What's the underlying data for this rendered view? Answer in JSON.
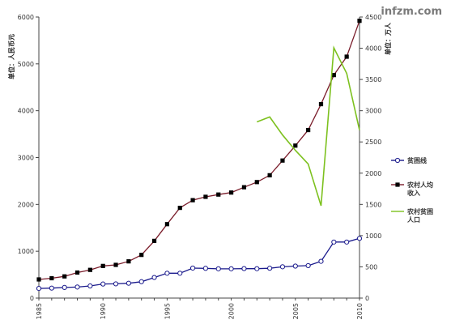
{
  "chart_data": {
    "type": "line",
    "watermark": "infzm.com",
    "left_axis": {
      "title": "单位：人民币元",
      "ylim": [
        0,
        6000
      ],
      "ticks": [
        0,
        1000,
        2000,
        3000,
        4000,
        5000,
        6000
      ]
    },
    "right_axis": {
      "title": "单位：万人",
      "ylim": [
        0,
        4500
      ],
      "ticks": [
        0,
        500,
        1000,
        1500,
        2000,
        2500,
        3000,
        3500,
        4000,
        4500
      ]
    },
    "x_axis": {
      "xlim": [
        1985,
        2010
      ],
      "ticks": [
        1985,
        1990,
        1995,
        2000,
        2005,
        2010
      ]
    },
    "grid": false,
    "legend_position": "right",
    "series": [
      {
        "name": "贫困线",
        "axis": "left",
        "color": "#1a1a8c",
        "marker": "open-circle",
        "x": [
          1985,
          1986,
          1987,
          1988,
          1989,
          1990,
          1991,
          1992,
          1993,
          1994,
          1995,
          1996,
          1997,
          1998,
          1999,
          2000,
          2001,
          2002,
          2003,
          2004,
          2005,
          2006,
          2007,
          2008,
          2009,
          2010
        ],
        "values": [
          206,
          213,
          227,
          236,
          259,
          300,
          304,
          317,
          350,
          440,
          530,
          530,
          640,
          635,
          625,
          625,
          630,
          627,
          637,
          668,
          683,
          693,
          785,
          1196,
          1196,
          1274
        ]
      },
      {
        "name": "农村人均收入",
        "axis": "left",
        "color": "#7a1c2a",
        "marker": "filled-square",
        "x": [
          1985,
          1986,
          1987,
          1988,
          1989,
          1990,
          1991,
          1992,
          1993,
          1994,
          1995,
          1996,
          1997,
          1998,
          1999,
          2000,
          2001,
          2002,
          2003,
          2004,
          2005,
          2006,
          2007,
          2008,
          2009,
          2010
        ],
        "values": [
          398,
          424,
          463,
          545,
          602,
          686,
          709,
          784,
          922,
          1221,
          1578,
          1926,
          2090,
          2162,
          2210,
          2253,
          2366,
          2476,
          2622,
          2936,
          3255,
          3587,
          4140,
          4761,
          5153,
          5919
        ]
      },
      {
        "name": "农村贫困人口",
        "axis": "right",
        "color": "#7dc11f",
        "marker": "none",
        "x": [
          2002,
          2003,
          2004,
          2005,
          2006,
          2007,
          2008,
          2009,
          2010
        ],
        "values": [
          2820,
          2900,
          2610,
          2365,
          2148,
          1479,
          4007,
          3597,
          2688
        ]
      }
    ]
  }
}
